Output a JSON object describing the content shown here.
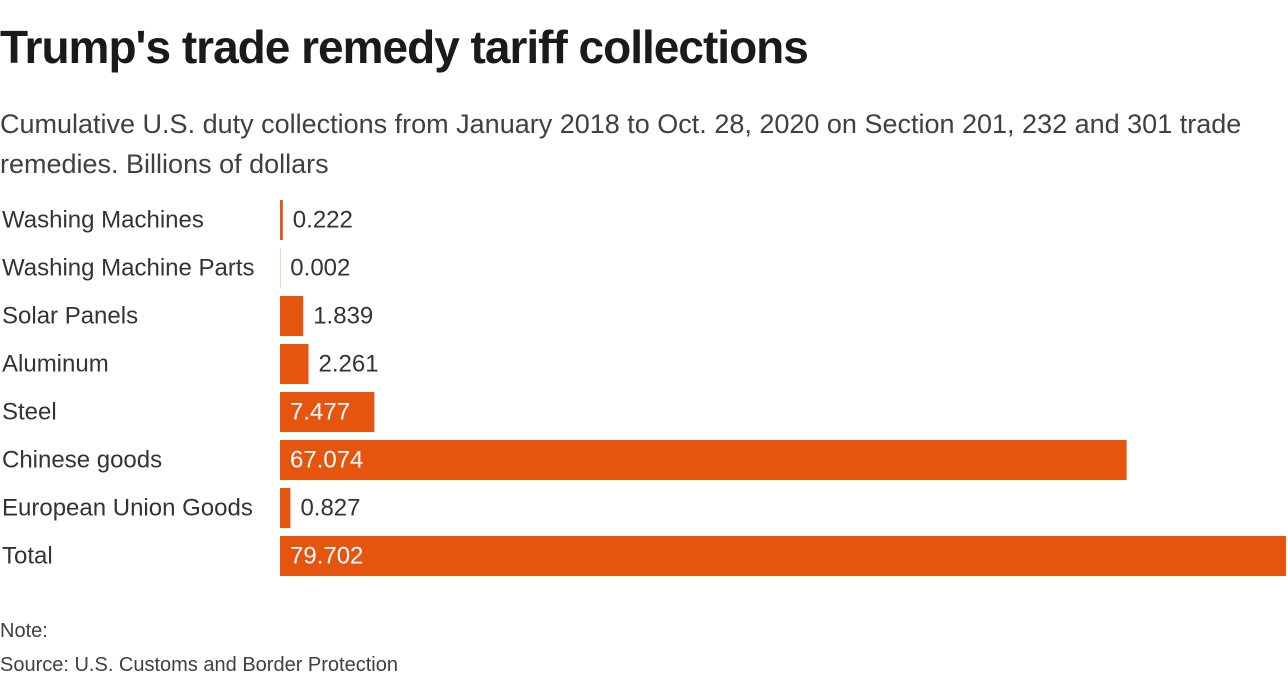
{
  "chart_data": {
    "type": "bar",
    "orientation": "horizontal",
    "title": "Trump's trade remedy tariff collections",
    "subtitle": "Cumulative U.S. duty collections from January 2018 to Oct. 28, 2020 on Section 201, 232 and 301 trade remedies. Billions of dollars",
    "categories": [
      "Washing Machines",
      "Washing Machine Parts",
      "Solar Panels",
      "Aluminum",
      "Steel",
      "Chinese goods",
      "European Union Goods",
      "Total"
    ],
    "values": [
      0.222,
      0.002,
      1.839,
      2.261,
      7.477,
      67.074,
      0.827,
      79.702
    ],
    "value_labels": [
      "0.222",
      "0.002",
      "1.839",
      "2.261",
      "7.477",
      "67.074",
      "0.827",
      "79.702"
    ],
    "xlim": [
      0,
      79.702
    ],
    "grid": false,
    "legend": "none",
    "bar_color": "#e5550f"
  },
  "footer": {
    "note": "Note:",
    "source": "Source: U.S. Customs and Border Protection"
  }
}
